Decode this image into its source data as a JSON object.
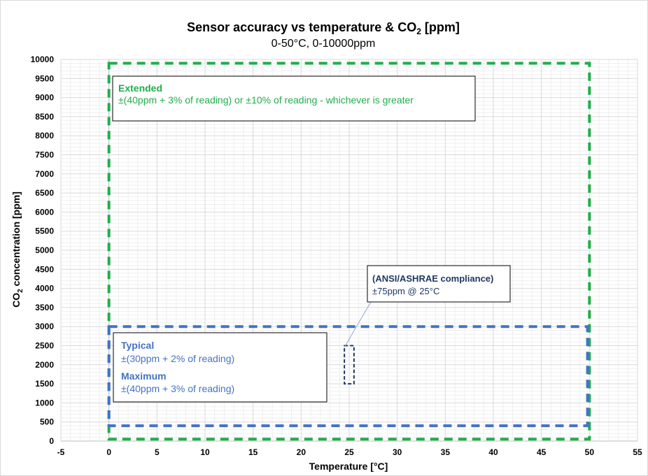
{
  "chart_data": {
    "type": "area",
    "title": "Sensor accuracy vs temperature & CO",
    "title_subscript": "2",
    "title_suffix": " [ppm]",
    "subtitle": "0-50°C, 0-10000ppm",
    "xlabel": "Temperature [°C]",
    "ylabel_prefix": "CO",
    "ylabel_subscript": "2",
    "ylabel_suffix": " concentration [ppm]",
    "xlim": [
      -5,
      55
    ],
    "ylim": [
      0,
      10000
    ],
    "x_ticks": [
      "-5",
      "0",
      "5",
      "10",
      "15",
      "20",
      "25",
      "30",
      "35",
      "40",
      "45",
      "50",
      "55"
    ],
    "y_ticks": [
      "0",
      "500",
      "1000",
      "1500",
      "2000",
      "2500",
      "3000",
      "3500",
      "4000",
      "4500",
      "5000",
      "5500",
      "6000",
      "6500",
      "7000",
      "7500",
      "8000",
      "8500",
      "9000",
      "9500",
      "10000"
    ],
    "grid": true,
    "regions": [
      {
        "id": "extended",
        "x": [
          0,
          50
        ],
        "y": [
          50,
          9900
        ],
        "color": "#1fae4b",
        "style": "dashed"
      },
      {
        "id": "typical",
        "x": [
          0,
          49.8
        ],
        "y": [
          400,
          3000
        ],
        "color": "#4472c4",
        "style": "dashed"
      },
      {
        "id": "ashrae",
        "x": [
          24.5,
          25.5
        ],
        "y": [
          1500,
          2500
        ],
        "color": "#1f3864",
        "style": "dashed"
      }
    ],
    "annotations": {
      "extended_head": "Extended",
      "extended_text": "±(40ppm + 3% of reading) or ±10% of reading - whichever is greater",
      "typical_head": "Typical",
      "typical_text": "±(30ppm + 2% of reading)",
      "maximum_head": "Maximum",
      "maximum_text": "±(40ppm + 3% of reading)",
      "ashrae_head": "(ANSI/ASHRAE compliance)",
      "ashrae_text": "±75ppm @ 25°C"
    },
    "colors": {
      "extended": "#1fae4b",
      "typical": "#4472c4",
      "ashrae": "#1f3864",
      "grid_major": "#d9d9d9",
      "grid_minor": "#efefef"
    }
  }
}
